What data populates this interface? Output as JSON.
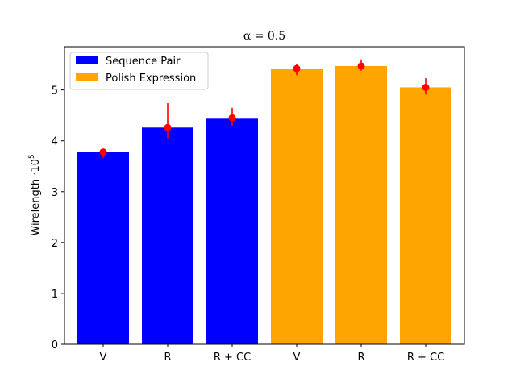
{
  "chart_data": {
    "type": "bar",
    "title": "α = 0.5",
    "ylabel_text": "Wirelength ·10",
    "ylabel_exponent": "5",
    "categories": [
      "V",
      "R",
      "R + CC",
      "V",
      "R",
      "R + CC"
    ],
    "values": [
      3.78,
      4.26,
      4.45,
      5.42,
      5.47,
      5.05
    ],
    "errors": [
      [
        3.66,
        3.84
      ],
      [
        4.05,
        4.74
      ],
      [
        4.3,
        4.65
      ],
      [
        5.29,
        5.51
      ],
      [
        5.38,
        5.6
      ],
      [
        4.91,
        5.23
      ]
    ],
    "series": [
      {
        "name": "Sequence Pair",
        "color": "#0000ff",
        "indices": [
          0,
          1,
          2
        ]
      },
      {
        "name": "Polish Expression",
        "color": "#ffa500",
        "indices": [
          3,
          4,
          5
        ]
      }
    ],
    "marker_color": "#ff0000",
    "yticks": [
      0,
      1,
      2,
      3,
      4,
      5
    ],
    "ylim": [
      0,
      5.85
    ],
    "legend_position": "top-left",
    "grid": false
  }
}
